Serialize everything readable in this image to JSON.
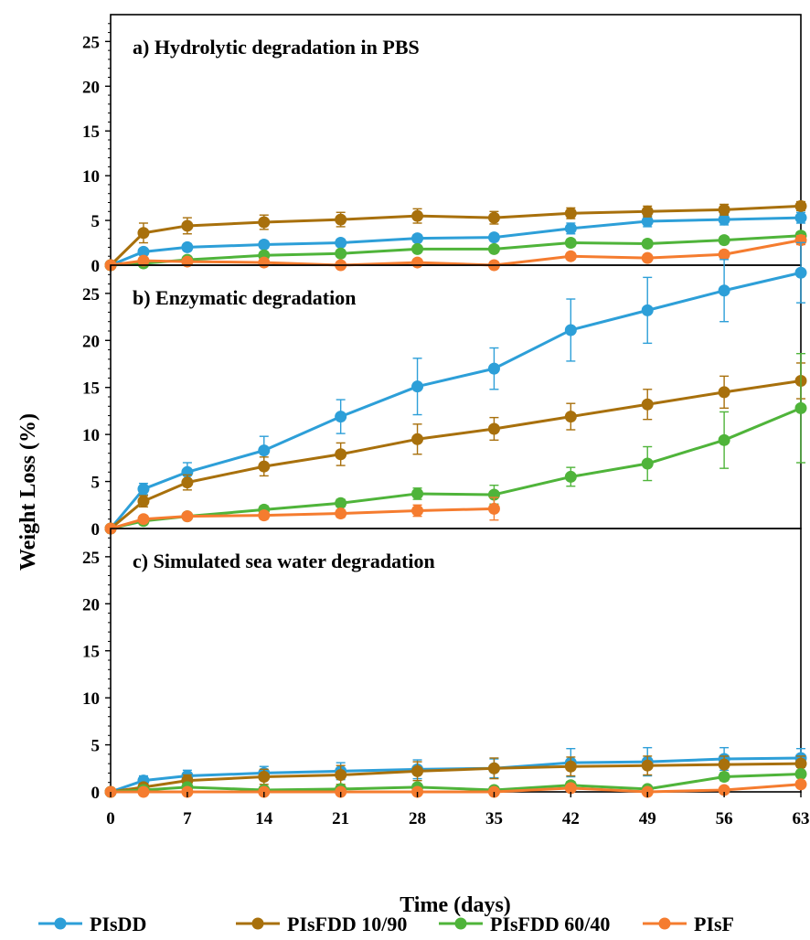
{
  "chart_data": {
    "type": "line",
    "xlabel": "Time (days)",
    "ylabel": "Weight Loss (%)",
    "xlim": [
      0,
      63
    ],
    "x_ticks": [
      0,
      7,
      14,
      21,
      28,
      35,
      42,
      49,
      56,
      63
    ],
    "x": [
      0,
      3,
      7,
      14,
      21,
      28,
      35,
      42,
      49,
      56,
      63
    ],
    "legend_position": "bottom",
    "grid": false,
    "colors": {
      "PIsDD": "#2d9fd8",
      "PIsFDD 10/90": "#a8700c",
      "PIsFDD 60/40": "#4fb43a",
      "PIsF": "#f57c2f"
    },
    "legend": [
      "PIsDD",
      "PIsFDD 10/90",
      "PIsFDD 60/40",
      "PIsF"
    ],
    "panels": [
      {
        "title": "a) Hydrolytic degradation in PBS",
        "ylim": [
          0,
          28
        ],
        "y_ticks": [
          0,
          5,
          10,
          15,
          20,
          25
        ],
        "series": [
          {
            "name": "PIsDD",
            "values": [
              0,
              1.5,
              2.0,
              2.3,
              2.5,
              3.0,
              3.1,
              4.1,
              4.9,
              5.1,
              5.3
            ],
            "errors": [
              0,
              0.3,
              0.4,
              0.4,
              0.4,
              0.4,
              0.4,
              0.6,
              0.6,
              0.6,
              0.6
            ]
          },
          {
            "name": "PIsFDD 10/90",
            "values": [
              0,
              3.6,
              4.4,
              4.8,
              5.1,
              5.5,
              5.3,
              5.8,
              6.0,
              6.2,
              6.6
            ],
            "errors": [
              0,
              1.1,
              0.9,
              0.8,
              0.8,
              0.8,
              0.7,
              0.6,
              0.6,
              0.6,
              0.5
            ]
          },
          {
            "name": "PIsFDD 60/40",
            "values": [
              0,
              0.2,
              0.6,
              1.1,
              1.3,
              1.8,
              1.8,
              2.5,
              2.4,
              2.8,
              3.3
            ],
            "errors": [
              0,
              0.2,
              0.2,
              0.3,
              0.3,
              0.3,
              0.3,
              0.4,
              0.4,
              0.4,
              0.4
            ]
          },
          {
            "name": "PIsF",
            "values": [
              0,
              0.5,
              0.4,
              0.3,
              0.0,
              0.3,
              0.0,
              1.0,
              0.8,
              1.2,
              2.8
            ],
            "errors": [
              0,
              0.2,
              0.2,
              0.2,
              0.3,
              0.3,
              0.4,
              0.3,
              0.3,
              0.4,
              0.5
            ]
          }
        ]
      },
      {
        "title": "b) Enzymatic degradation",
        "ylim": [
          0,
          28
        ],
        "y_ticks": [
          0,
          5,
          10,
          15,
          20,
          25
        ],
        "series": [
          {
            "name": "PIsDD",
            "values": [
              0,
              4.2,
              6.0,
              8.3,
              11.9,
              15.1,
              17.0,
              21.1,
              23.2,
              25.3,
              27.2
            ],
            "errors": [
              0,
              0.6,
              1.0,
              1.5,
              1.8,
              3.0,
              2.2,
              3.3,
              3.5,
              3.3,
              3.2
            ]
          },
          {
            "name": "PIsFDD 10/90",
            "values": [
              0,
              2.9,
              4.9,
              6.6,
              7.9,
              9.5,
              10.6,
              11.9,
              13.2,
              14.5,
              15.7
            ],
            "errors": [
              0,
              0.6,
              0.8,
              1.0,
              1.2,
              1.6,
              1.2,
              1.4,
              1.6,
              1.7,
              1.9
            ]
          },
          {
            "name": "PIsFDD 60/40",
            "values": [
              0,
              0.8,
              1.3,
              2.0,
              2.7,
              3.7,
              3.6,
              5.5,
              6.9,
              9.4,
              12.8
            ],
            "errors": [
              0,
              0.2,
              0.3,
              0.4,
              0.4,
              0.6,
              1.0,
              1.0,
              1.8,
              3.0,
              5.8
            ]
          },
          {
            "name": "PIsF",
            "values": [
              0,
              1.0,
              1.3,
              1.4,
              1.6,
              1.9,
              2.1,
              null,
              null,
              null,
              null
            ],
            "errors": [
              0,
              0.3,
              0.3,
              0.4,
              0.4,
              0.6,
              1.2,
              null,
              null,
              null,
              null
            ]
          }
        ]
      },
      {
        "title": "c) Simulated sea water degradation",
        "ylim": [
          0,
          28
        ],
        "y_ticks": [
          0,
          5,
          10,
          15,
          20,
          25
        ],
        "series": [
          {
            "name": "PIsDD",
            "values": [
              0,
              1.2,
              1.7,
              2.0,
              2.2,
              2.4,
              2.5,
              3.1,
              3.2,
              3.5,
              3.6
            ],
            "errors": [
              0,
              0.5,
              0.6,
              0.7,
              0.9,
              1.0,
              1.0,
              1.5,
              1.5,
              1.2,
              1.0
            ]
          },
          {
            "name": "PIsFDD 10/90",
            "values": [
              0,
              0.5,
              1.2,
              1.6,
              1.8,
              2.2,
              2.5,
              2.7,
              2.8,
              2.9,
              3.0
            ],
            "errors": [
              0,
              0.4,
              0.6,
              0.8,
              1.0,
              1.0,
              1.1,
              1.0,
              1.0,
              0.9,
              0.8
            ]
          },
          {
            "name": "PIsFDD 60/40",
            "values": [
              0,
              0.2,
              0.5,
              0.2,
              0.3,
              0.5,
              0.2,
              0.7,
              0.3,
              1.6,
              1.9
            ],
            "errors": [
              0,
              0.2,
              0.3,
              0.3,
              0.3,
              0.3,
              0.3,
              0.4,
              0.3,
              0.4,
              0.4
            ]
          },
          {
            "name": "PIsF",
            "values": [
              0,
              0.0,
              0.0,
              0.0,
              0.0,
              0.0,
              0.0,
              0.4,
              0.0,
              0.2,
              0.8
            ],
            "errors": [
              0,
              0.2,
              0.2,
              0.2,
              0.2,
              0.2,
              0.2,
              0.3,
              0.2,
              0.3,
              0.3
            ]
          }
        ]
      }
    ]
  }
}
